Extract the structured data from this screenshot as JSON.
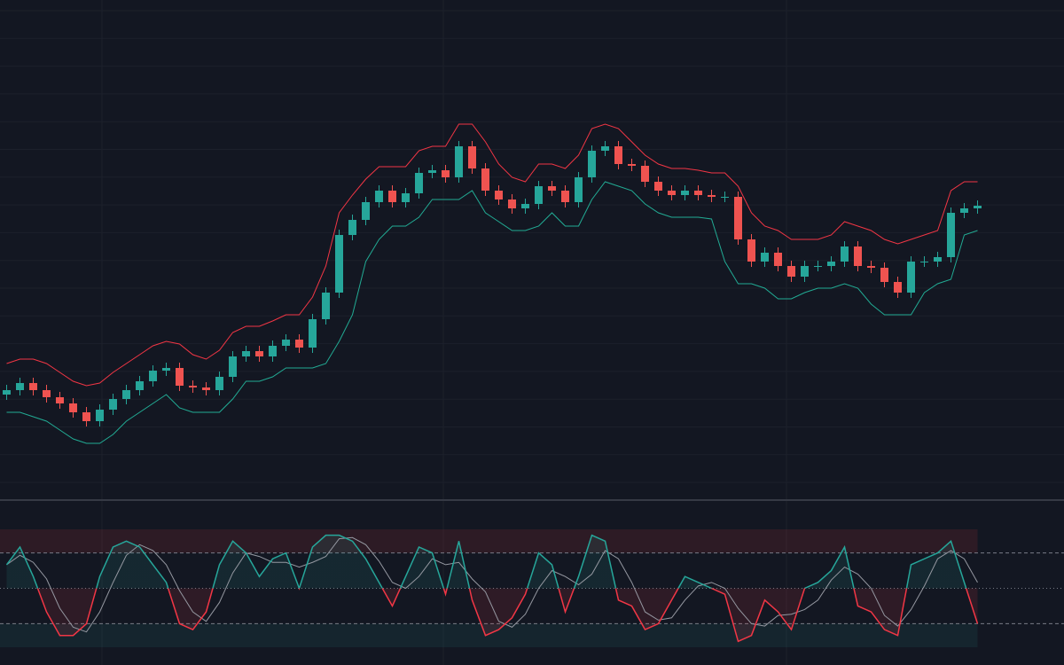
{
  "chart_data": [
    {
      "type": "candlestick",
      "ylim": [
        0,
        560
      ],
      "grid": true,
      "up_color": "#26a69a",
      "down_color": "#ef5350",
      "upper_color": "#f23645",
      "lower_color": "#22ab94",
      "open": [
        115,
        120,
        128,
        120,
        112,
        105,
        95,
        85,
        98,
        110,
        120,
        130,
        142,
        145,
        125,
        123,
        120,
        135,
        158,
        164,
        158,
        170,
        177,
        168,
        200,
        230,
        295,
        312,
        332,
        345,
        332,
        342,
        365,
        368,
        360,
        395,
        370,
        345,
        335,
        325,
        330,
        350,
        345,
        332,
        360,
        390,
        395,
        375,
        373,
        355,
        345,
        340,
        345,
        340,
        338,
        338,
        290,
        265,
        275,
        260,
        248,
        260,
        260,
        265,
        282,
        260,
        258,
        242,
        230,
        265,
        265,
        270,
        320,
        325
      ],
      "high": [
        126,
        134,
        134,
        126,
        118,
        111,
        101,
        104,
        116,
        126,
        136,
        148,
        151,
        151,
        131,
        129,
        141,
        164,
        170,
        170,
        176,
        183,
        183,
        206,
        236,
        301,
        318,
        338,
        351,
        351,
        348,
        371,
        374,
        374,
        401,
        401,
        376,
        351,
        341,
        336,
        356,
        356,
        351,
        366,
        396,
        401,
        401,
        381,
        379,
        361,
        351,
        351,
        351,
        346,
        344,
        344,
        296,
        281,
        281,
        266,
        266,
        266,
        271,
        288,
        288,
        266,
        264,
        248,
        271,
        271,
        276,
        326,
        331,
        334
      ],
      "low": [
        109,
        114,
        114,
        106,
        99,
        89,
        79,
        79,
        92,
        104,
        114,
        124,
        136,
        119,
        117,
        114,
        114,
        129,
        152,
        152,
        152,
        164,
        162,
        162,
        194,
        224,
        289,
        306,
        326,
        326,
        326,
        336,
        359,
        354,
        354,
        364,
        339,
        329,
        319,
        319,
        324,
        339,
        326,
        326,
        354,
        384,
        369,
        367,
        349,
        339,
        334,
        334,
        334,
        332,
        332,
        284,
        259,
        259,
        254,
        242,
        242,
        254,
        254,
        259,
        254,
        252,
        236,
        224,
        224,
        259,
        259,
        264,
        314,
        319
      ],
      "close": [
        120,
        128,
        120,
        112,
        105,
        95,
        85,
        98,
        110,
        120,
        130,
        142,
        145,
        125,
        123,
        120,
        135,
        158,
        164,
        158,
        170,
        177,
        168,
        200,
        230,
        295,
        312,
        332,
        345,
        332,
        342,
        365,
        368,
        360,
        395,
        370,
        345,
        335,
        325,
        330,
        350,
        345,
        332,
        360,
        390,
        395,
        375,
        373,
        355,
        345,
        340,
        345,
        340,
        338,
        338,
        290,
        265,
        275,
        260,
        248,
        260,
        260,
        265,
        282,
        260,
        258,
        242,
        230,
        265,
        265,
        270,
        320,
        325,
        328
      ],
      "upper": [
        150,
        155,
        155,
        150,
        140,
        130,
        125,
        128,
        140,
        150,
        160,
        170,
        175,
        172,
        160,
        155,
        165,
        185,
        192,
        192,
        198,
        205,
        205,
        225,
        260,
        320,
        340,
        358,
        372,
        372,
        372,
        390,
        395,
        395,
        420,
        420,
        400,
        375,
        360,
        355,
        375,
        375,
        370,
        385,
        415,
        420,
        415,
        400,
        385,
        375,
        370,
        370,
        368,
        365,
        365,
        350,
        320,
        305,
        300,
        290,
        290,
        290,
        295,
        310,
        305,
        300,
        290,
        285,
        290,
        295,
        300,
        345,
        355,
        355
      ],
      "lower": [
        95,
        95,
        90,
        85,
        75,
        65,
        60,
        60,
        70,
        85,
        95,
        105,
        115,
        100,
        95,
        95,
        95,
        110,
        130,
        130,
        135,
        145,
        145,
        145,
        150,
        175,
        205,
        265,
        290,
        305,
        305,
        315,
        335,
        335,
        335,
        345,
        320,
        310,
        300,
        300,
        305,
        320,
        305,
        305,
        335,
        355,
        350,
        345,
        330,
        320,
        315,
        315,
        315,
        313,
        265,
        240,
        240,
        235,
        223,
        223,
        230,
        235,
        235,
        240,
        235,
        217,
        205,
        205,
        205,
        230,
        240,
        245,
        295,
        300
      ]
    },
    {
      "type": "stochastic",
      "ylim": [
        0,
        100
      ],
      "levels": [
        80,
        50,
        20
      ],
      "k_up_color": "#26a69a",
      "k_down_color": "#f23645",
      "d_color": "#9598a1",
      "k": [
        70,
        85,
        60,
        30,
        10,
        10,
        20,
        60,
        85,
        90,
        85,
        70,
        55,
        20,
        15,
        30,
        70,
        90,
        80,
        60,
        75,
        80,
        50,
        85,
        95,
        95,
        90,
        75,
        55,
        35,
        60,
        85,
        80,
        45,
        90,
        40,
        10,
        15,
        25,
        45,
        80,
        70,
        30,
        60,
        95,
        90,
        40,
        35,
        15,
        20,
        40,
        60,
        55,
        50,
        45,
        5,
        10,
        40,
        30,
        15,
        50,
        55,
        65,
        85,
        35,
        30,
        15,
        10,
        70,
        75,
        80,
        90,
        55,
        20
      ],
      "d": [
        70,
        78,
        72,
        58,
        33,
        17,
        13,
        30,
        55,
        78,
        87,
        82,
        70,
        48,
        30,
        22,
        38,
        63,
        80,
        77,
        72,
        72,
        68,
        72,
        77,
        92,
        93,
        87,
        73,
        55,
        50,
        60,
        75,
        70,
        72,
        58,
        47,
        22,
        17,
        28,
        50,
        65,
        60,
        53,
        62,
        82,
        75,
        55,
        30,
        23,
        25,
        40,
        52,
        55,
        50,
        33,
        20,
        18,
        27,
        28,
        32,
        40,
        57,
        68,
        62,
        50,
        27,
        18,
        32,
        52,
        75,
        82,
        75,
        55
      ]
    }
  ]
}
